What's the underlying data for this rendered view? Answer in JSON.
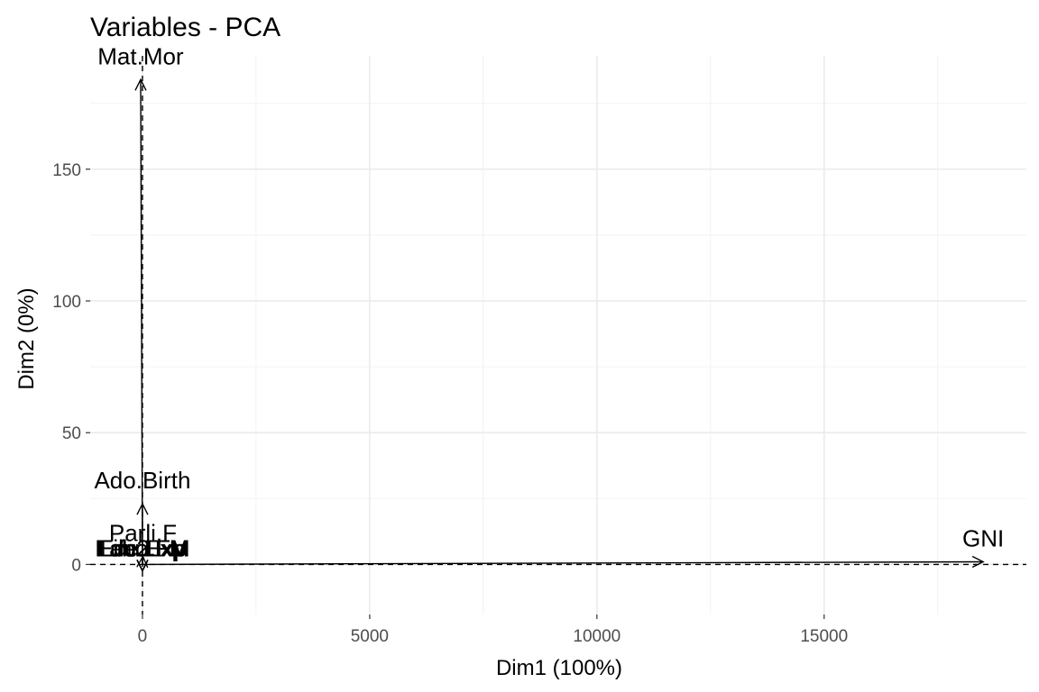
{
  "chart_data": {
    "type": "scatter",
    "subtype": "pca-variable-arrows",
    "title": "Variables - PCA",
    "xlabel": "Dim1 (100%)",
    "ylabel": "Dim2 (0%)",
    "xlim": [
      -1150,
      19450
    ],
    "ylim": [
      -19,
      193
    ],
    "x_ticks": [
      0,
      5000,
      10000,
      15000
    ],
    "x_tick_labels": [
      "0",
      "5000",
      "10000",
      "15000"
    ],
    "y_ticks": [
      0,
      50,
      100,
      150
    ],
    "y_tick_labels": [
      "0",
      "50",
      "100",
      "150"
    ],
    "grid": true,
    "reference_lines": {
      "x": 0,
      "y": 0,
      "style": "dashed"
    },
    "variables": [
      {
        "name": "Mat.Mor",
        "x": -40,
        "y": 184
      },
      {
        "name": "Ado.Birth",
        "x": 0,
        "y": 23
      },
      {
        "name": "GNI",
        "x": 18500,
        "y": 1
      },
      {
        "name": "Parli.F",
        "x": 10,
        "y": 3
      },
      {
        "name": "Edu.Exp",
        "x": 0,
        "y": 0
      },
      {
        "name": "Life.Exp",
        "x": 0,
        "y": 0
      },
      {
        "name": "Edu2.FM",
        "x": 0,
        "y": 0
      },
      {
        "name": "Labo.FM",
        "x": 0,
        "y": 0
      }
    ]
  }
}
